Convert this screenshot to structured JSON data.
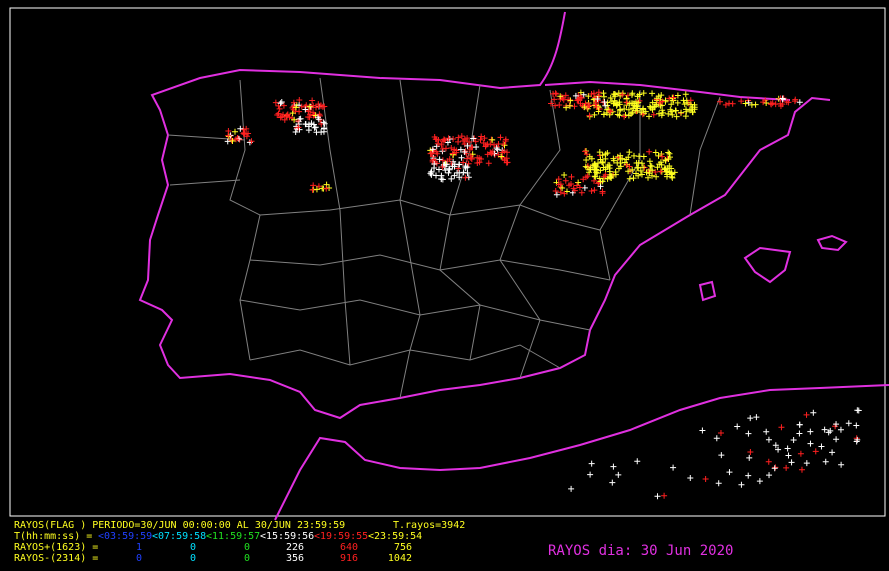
{
  "header": {
    "period": "RAYOS(FLAG ) PERIODO=30/JUN 00:00:00 AL 30/JUN 23:59:59",
    "total": "T.rayos=3942"
  },
  "legend": {
    "label": "T(hh:mm:ss) =",
    "periods": [
      {
        "label": "<03:59:59",
        "color": "#2040ff"
      },
      {
        "label": "<07:59:58",
        "color": "#00e0ff"
      },
      {
        "label": "<11:59:57",
        "color": "#20e020"
      },
      {
        "label": "<15:59:56",
        "color": "#ffffff"
      },
      {
        "label": "<19:59:55",
        "color": "#ff2020"
      },
      {
        "label": "<23:59:54",
        "color": "#ffff20"
      }
    ]
  },
  "rows": [
    {
      "label": "RAYOS+(1623) =",
      "values": [
        "1",
        "0",
        "0",
        "226",
        "640",
        "756"
      ]
    },
    {
      "label": "RAYOS-(2314) =",
      "values": [
        "0",
        "0",
        "0",
        "356",
        "916",
        "1042"
      ]
    }
  ],
  "date_label": "RAYOS dia: 30 Jun 2020"
}
